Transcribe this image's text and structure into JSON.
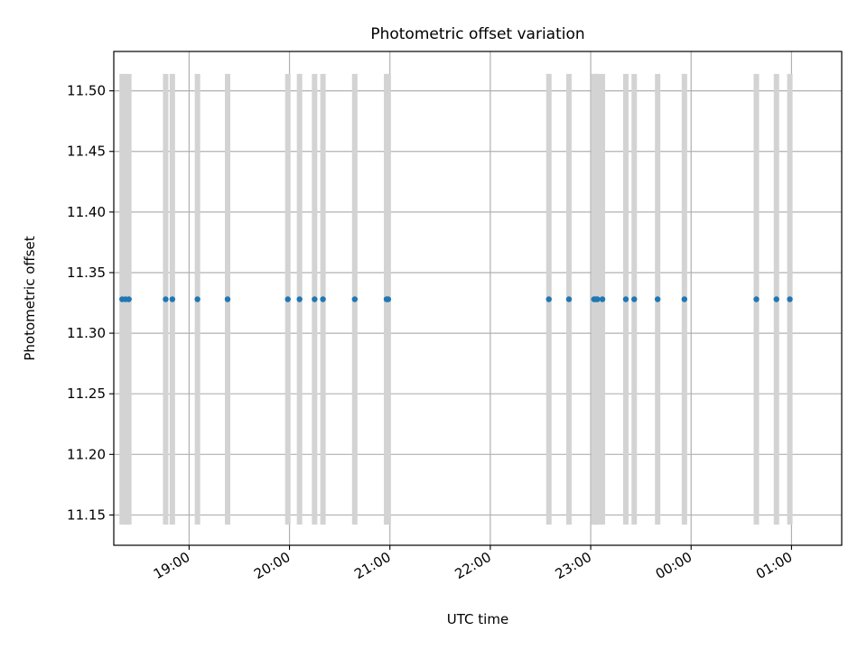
{
  "chart_data": {
    "type": "scatter",
    "title": "Photometric offset variation",
    "xlabel": "UTC time",
    "ylabel": "Photometric offset",
    "x_unit": "UTC time (HH:MM)",
    "xlim": [
      "18:15",
      "01:30"
    ],
    "ylim": [
      11.125,
      11.5325
    ],
    "x_ticks": [
      "19:00",
      "20:00",
      "21:00",
      "22:00",
      "23:00",
      "00:00",
      "01:00"
    ],
    "y_ticks": [
      "11.15",
      "11.20",
      "11.25",
      "11.30",
      "11.35",
      "11.40",
      "11.45",
      "11.50"
    ],
    "grid": true,
    "span_range": [
      11.142,
      11.514
    ],
    "colors": {
      "points": "#1f77b4",
      "spans": "#d3d3d3",
      "grid": "#b0b0b0"
    },
    "series": [
      {
        "x": [
          "18:20",
          "18:22",
          "18:24",
          "18:46",
          "18:50",
          "19:05",
          "19:23",
          "19:59",
          "20:06",
          "20:15",
          "20:20",
          "20:39",
          "20:58",
          "20:59",
          "22:35",
          "22:47",
          "23:02",
          "23:03",
          "23:04",
          "23:07",
          "23:21",
          "23:26",
          "23:40",
          "23:56",
          "00:39",
          "00:51",
          "00:59"
        ],
        "y": [
          11.328,
          11.328,
          11.328,
          11.328,
          11.328,
          11.328,
          11.328,
          11.328,
          11.328,
          11.328,
          11.328,
          11.328,
          11.328,
          11.328,
          11.328,
          11.328,
          11.328,
          11.328,
          11.328,
          11.328,
          11.328,
          11.328,
          11.328,
          11.328,
          11.328,
          11.328,
          11.328
        ]
      }
    ]
  }
}
